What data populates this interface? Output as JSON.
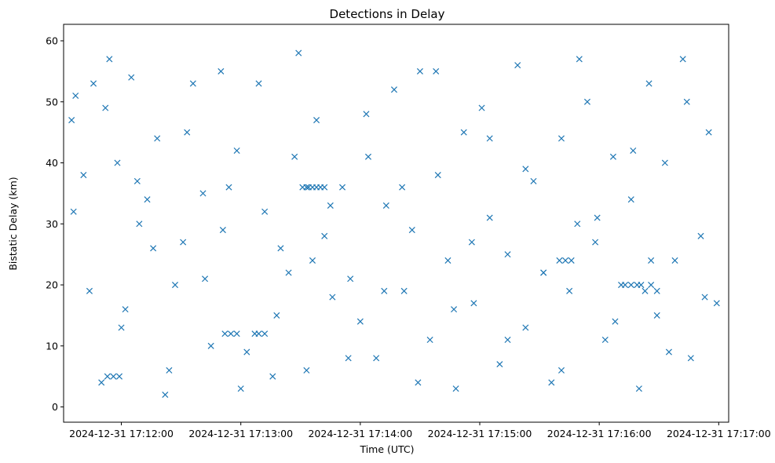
{
  "chart_data": {
    "type": "scatter",
    "title": "Detections in Delay",
    "xlabel": "Time (UTC)",
    "ylabel": "Bistatic Delay (km)",
    "marker": "x",
    "color": "#1f77b4",
    "grid": false,
    "legend": "none",
    "x_ticks": [
      "2024-12-31 17:12:00",
      "2024-12-31 17:13:00",
      "2024-12-31 17:14:00",
      "2024-12-31 17:15:00",
      "2024-12-31 17:16:00",
      "2024-12-31 17:17:00"
    ],
    "y_ticks": [
      0,
      10,
      20,
      30,
      40,
      50,
      60
    ],
    "xlim": [
      "2024-12-31 17:11:31",
      "2024-12-31 17:17:05"
    ],
    "ylim": [
      -2.5,
      62.7
    ],
    "series": [
      {
        "x": [
          "2024-12-31 17:11:35",
          "2024-12-31 17:11:37",
          "2024-12-31 17:11:41",
          "2024-12-31 17:11:46",
          "2024-12-31 17:11:50",
          "2024-12-31 17:11:54",
          "2024-12-31 17:11:58",
          "2024-12-31 17:12:02",
          "2024-12-31 17:12:05",
          "2024-12-31 17:12:09",
          "2024-12-31 17:12:13",
          "2024-12-31 17:12:18",
          "2024-12-31 17:12:22",
          "2024-12-31 17:12:27",
          "2024-12-31 17:12:31",
          "2024-12-31 17:12:36",
          "2024-12-31 17:12:41",
          "2024-12-31 17:12:45",
          "2024-12-31 17:12:50",
          "2024-12-31 17:12:54",
          "2024-12-31 17:12:58",
          "2024-12-31 17:13:03",
          "2024-12-31 17:13:07",
          "2024-12-31 17:13:12",
          "2024-12-31 17:13:16",
          "2024-12-31 17:13:20",
          "2024-12-31 17:13:24",
          "2024-12-31 17:13:29",
          "2024-12-31 17:13:33",
          "2024-12-31 17:13:38",
          "2024-12-31 17:13:42",
          "2024-12-31 17:13:46",
          "2024-12-31 17:13:51",
          "2024-12-31 17:13:55",
          "2024-12-31 17:14:00",
          "2024-12-31 17:14:04",
          "2024-12-31 17:14:08",
          "2024-12-31 17:14:13",
          "2024-12-31 17:14:17",
          "2024-12-31 17:14:22",
          "2024-12-31 17:14:26",
          "2024-12-31 17:14:30",
          "2024-12-31 17:14:35",
          "2024-12-31 17:14:39",
          "2024-12-31 17:14:44",
          "2024-12-31 17:14:48",
          "2024-12-31 17:14:52",
          "2024-12-31 17:14:57",
          "2024-12-31 17:15:01",
          "2024-12-31 17:15:05",
          "2024-12-31 17:15:10",
          "2024-12-31 17:15:14",
          "2024-12-31 17:15:19",
          "2024-12-31 17:15:23",
          "2024-12-31 17:15:27",
          "2024-12-31 17:15:32",
          "2024-12-31 17:15:36",
          "2024-12-31 17:15:41",
          "2024-12-31 17:15:45",
          "2024-12-31 17:15:49",
          "2024-12-31 17:15:54",
          "2024-12-31 17:15:58",
          "2024-12-31 17:16:03",
          "2024-12-31 17:16:07",
          "2024-12-31 17:16:11",
          "2024-12-31 17:16:16",
          "2024-12-31 17:16:20",
          "2024-12-31 17:16:25",
          "2024-12-31 17:16:29",
          "2024-12-31 17:16:33",
          "2024-12-31 17:16:38",
          "2024-12-31 17:16:42",
          "2024-12-31 17:16:46",
          "2024-12-31 17:16:51",
          "2024-12-31 17:16:55",
          "2024-12-31 17:16:59",
          "2024-12-31 17:11:36",
          "2024-12-31 17:11:44",
          "2024-12-31 17:11:52",
          "2024-12-31 17:12:00",
          "2024-12-31 17:12:08",
          "2024-12-31 17:12:16",
          "2024-12-31 17:12:24",
          "2024-12-31 17:12:33",
          "2024-12-31 17:12:42",
          "2024-12-31 17:12:51",
          "2024-12-31 17:13:00",
          "2024-12-31 17:13:09",
          "2024-12-31 17:13:18",
          "2024-12-31 17:13:27",
          "2024-12-31 17:13:36",
          "2024-12-31 17:13:45",
          "2024-12-31 17:13:54",
          "2024-12-31 17:14:03",
          "2024-12-31 17:14:12",
          "2024-12-31 17:14:21",
          "2024-12-31 17:14:29",
          "2024-12-31 17:14:38",
          "2024-12-31 17:14:47",
          "2024-12-31 17:14:56",
          "2024-12-31 17:15:05",
          "2024-12-31 17:15:14",
          "2024-12-31 17:15:23",
          "2024-12-31 17:15:32",
          "2024-12-31 17:15:41",
          "2024-12-31 17:15:50",
          "2024-12-31 17:15:59",
          "2024-12-31 17:16:08",
          "2024-12-31 17:16:17",
          "2024-12-31 17:16:26",
          "2024-12-31 17:16:35",
          "2024-12-31 17:16:44",
          "2024-12-31 17:16:53",
          "2024-12-31 17:13:33",
          "2024-12-31 17:13:34",
          "2024-12-31 17:13:36",
          "2024-12-31 17:13:38",
          "2024-12-31 17:13:40",
          "2024-12-31 17:13:42",
          "2024-12-31 17:13:31",
          "2024-12-31 17:16:13",
          "2024-12-31 17:16:16",
          "2024-12-31 17:16:19",
          "2024-12-31 17:16:21",
          "2024-12-31 17:16:23",
          "2024-12-31 17:16:26",
          "2024-12-31 17:16:29",
          "2024-12-31 17:15:40",
          "2024-12-31 17:15:43",
          "2024-12-31 17:15:46",
          "2024-12-31 17:12:52",
          "2024-12-31 17:12:55",
          "2024-12-31 17:12:58",
          "2024-12-31 17:13:09",
          "2024-12-31 17:13:12",
          "2024-12-31 17:11:53",
          "2024-12-31 17:11:56",
          "2024-12-31 17:11:59"
        ],
        "y": [
          47,
          51,
          38,
          53,
          4,
          57,
          40,
          16,
          54,
          30,
          34,
          44,
          2,
          20,
          27,
          53,
          35,
          10,
          55,
          36,
          42,
          9,
          12,
          32,
          5,
          26,
          22,
          58,
          6,
          47,
          28,
          18,
          36,
          21,
          14,
          41,
          8,
          33,
          52,
          19,
          29,
          55,
          11,
          38,
          24,
          3,
          45,
          17,
          49,
          31,
          7,
          25,
          56,
          13,
          37,
          22,
          4,
          44,
          19,
          30,
          50,
          27,
          11,
          41,
          20,
          34,
          3,
          53,
          15,
          40,
          24,
          57,
          8,
          28,
          45,
          17,
          32,
          19,
          49,
          13,
          37,
          26,
          6,
          45,
          21,
          29,
          3,
          53,
          15,
          41,
          24,
          33,
          8,
          48,
          19,
          36,
          4,
          55,
          16,
          27,
          44,
          11,
          39,
          22,
          6,
          57,
          31,
          14,
          42,
          24,
          9,
          50,
          18,
          36,
          36,
          36,
          36,
          36,
          36,
          36,
          20,
          20,
          20,
          20,
          19,
          20,
          19,
          24,
          24,
          24,
          12,
          12,
          12,
          12,
          12,
          5,
          5,
          5
        ]
      }
    ]
  }
}
